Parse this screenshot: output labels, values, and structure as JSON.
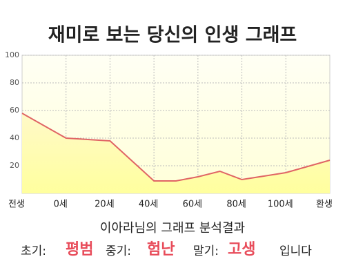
{
  "chart_data": {
    "type": "area",
    "title": "재미로 보는 당신의 인생 그래프",
    "x": [
      -20,
      0,
      20,
      40,
      50,
      60,
      70,
      80,
      100,
      120
    ],
    "series": [
      {
        "name": "인생",
        "color": "#e06464",
        "fill": "#fff7a8",
        "values": [
          58,
          40,
          38,
          9,
          9,
          12,
          16,
          10,
          15,
          24
        ]
      }
    ],
    "xlim": [
      -20,
      120
    ],
    "xticks": [
      {
        "value": -20,
        "label": "전생"
      },
      {
        "value": 0,
        "label": "0세"
      },
      {
        "value": 20,
        "label": "20세"
      },
      {
        "value": 40,
        "label": "40세"
      },
      {
        "value": 60,
        "label": "60세"
      },
      {
        "value": 80,
        "label": "80세"
      },
      {
        "value": 100,
        "label": "100세"
      },
      {
        "value": 120,
        "label": "환생"
      }
    ],
    "ylim": [
      0,
      100
    ],
    "yticks": [
      20,
      40,
      60,
      80,
      100
    ],
    "grid": true,
    "summary": {
      "heading": "이아라님의 그래프 분석결과",
      "items": [
        {
          "label": "초기:",
          "value": "평범"
        },
        {
          "label": "중기:",
          "value": "험난"
        },
        {
          "label": "말기:",
          "value": "고생"
        }
      ],
      "ending": "입니다"
    }
  }
}
